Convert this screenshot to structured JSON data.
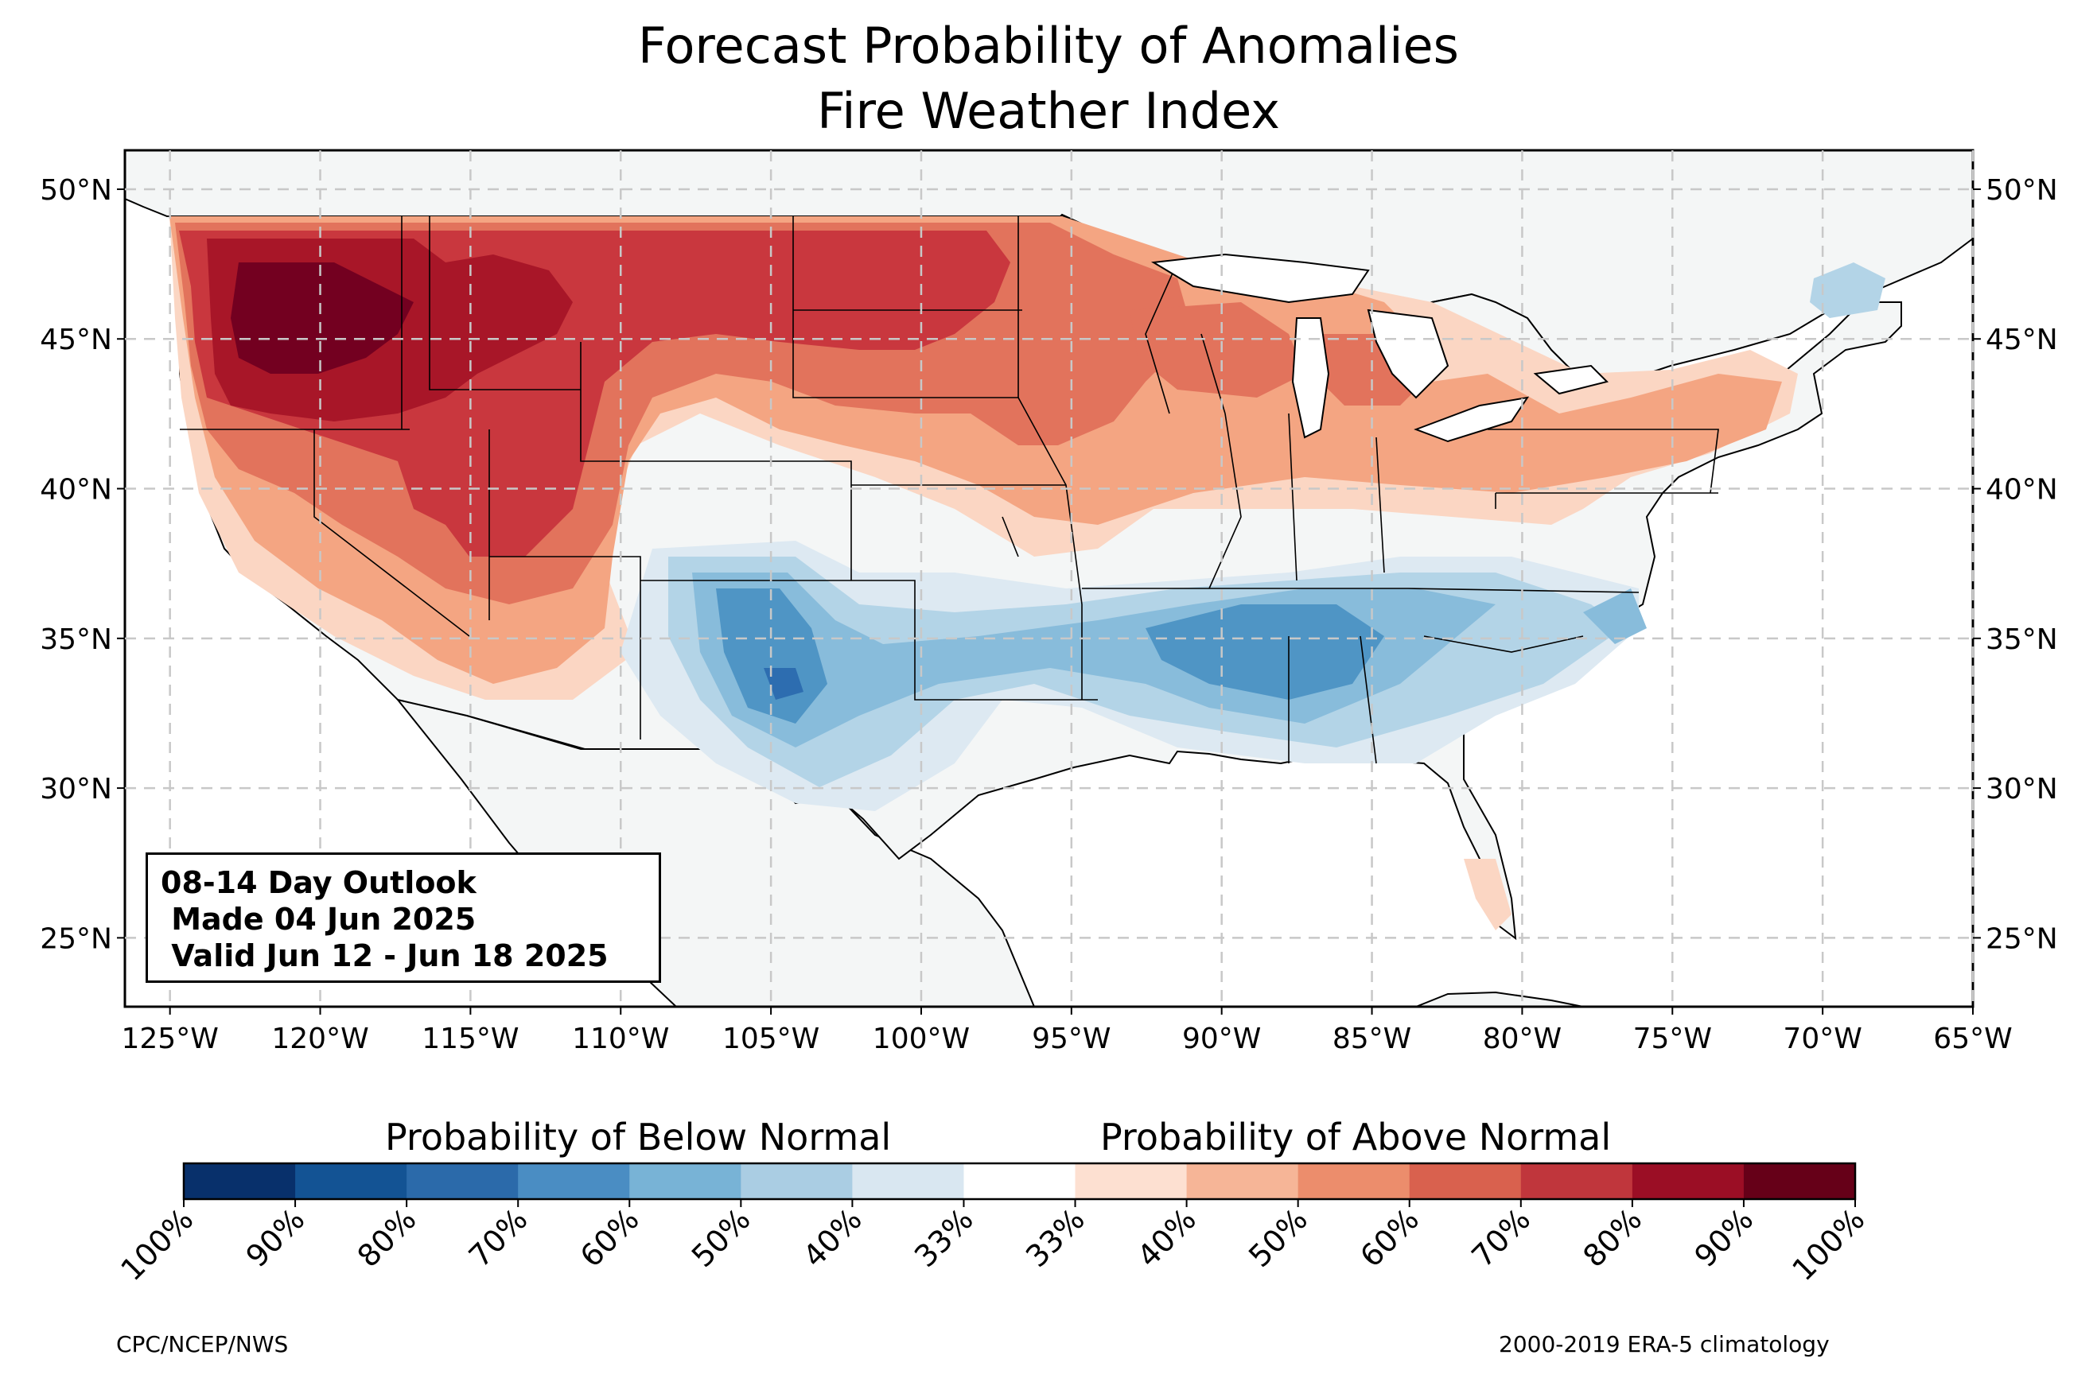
{
  "title": {
    "line1": "Forecast Probability of Anomalies",
    "line2": "Fire Weather Index"
  },
  "map": {
    "lon_range": [
      -126.5,
      -65
    ],
    "lat_range": [
      22.7,
      51.3
    ],
    "grid": true,
    "lon_ticks": [
      {
        "value": -125,
        "label": "125°W"
      },
      {
        "value": -120,
        "label": "120°W"
      },
      {
        "value": -115,
        "label": "115°W"
      },
      {
        "value": -110,
        "label": "110°W"
      },
      {
        "value": -105,
        "label": "105°W"
      },
      {
        "value": -100,
        "label": "100°W"
      },
      {
        "value": -95,
        "label": "95°W"
      },
      {
        "value": -90,
        "label": "90°W"
      },
      {
        "value": -85,
        "label": "85°W"
      },
      {
        "value": -80,
        "label": "80°W"
      },
      {
        "value": -75,
        "label": "75°W"
      },
      {
        "value": -70,
        "label": "70°W"
      },
      {
        "value": -65,
        "label": "65°W"
      }
    ],
    "lat_ticks": [
      {
        "value": 50,
        "label": "50°N"
      },
      {
        "value": 45,
        "label": "45°N"
      },
      {
        "value": 40,
        "label": "40°N"
      },
      {
        "value": 35,
        "label": "35°N"
      },
      {
        "value": 30,
        "label": "30°N"
      },
      {
        "value": 25,
        "label": "25°N"
      }
    ],
    "colors": {
      "land": "#f4f6f6",
      "above_40": "#fbd6c3",
      "above_50": "#f4a582",
      "above_60": "#e2735c",
      "above_70": "#c9373e",
      "above_80": "#a81628",
      "above_90": "#730020",
      "below_40": "#dde9f2",
      "below_50": "#b3d4e7",
      "below_60": "#88bcdb",
      "below_70": "#4f95c5",
      "below_80": "#2d6db0"
    }
  },
  "outlook": {
    "line1": "08-14 Day Outlook",
    "line2": " Made 04 Jun 2025",
    "line3": " Valid Jun 12 - Jun 18 2025"
  },
  "colorbar": {
    "below_label": "Probability of Below Normal",
    "above_label": "Probability of Above Normal",
    "colors": [
      "#08306b",
      "#135394",
      "#2b6aaa",
      "#4a8dc3",
      "#78b3d6",
      "#aacde3",
      "#d9e7f1",
      "#ffffff",
      "#fde0d1",
      "#f6b597",
      "#ec8d6c",
      "#d9614e",
      "#c0363c",
      "#9b0e25",
      "#660018"
    ],
    "tick_labels": [
      "100%",
      "90%",
      "80%",
      "70%",
      "60%",
      "50%",
      "40%",
      "33%",
      "33%",
      "40%",
      "50%",
      "60%",
      "70%",
      "80%",
      "90%",
      "100%"
    ]
  },
  "credits": {
    "left": "CPC/NCEP/NWS",
    "right": "2000-2019 ERA-5 climatology"
  }
}
